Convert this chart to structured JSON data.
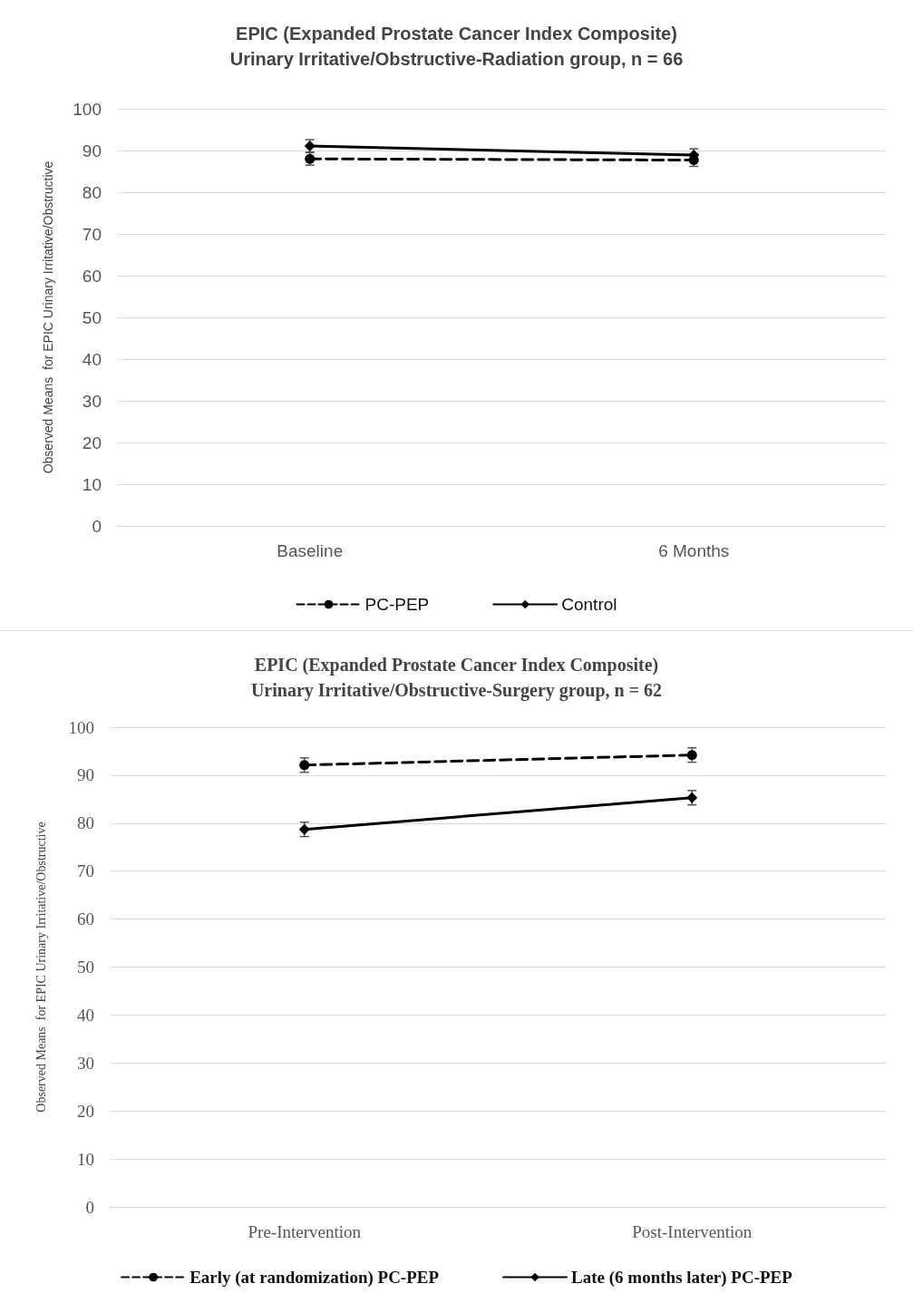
{
  "chart_data": [
    {
      "type": "line",
      "title": "EPIC (Expanded Prostate Cancer Index Composite)\nUrinary Irritative/Obstructive-Radiation group, n = 66",
      "ylabel": "Observed Means  for EPIC Urinary Irritative/Obstructive",
      "categories": [
        "Baseline",
        "6 Months"
      ],
      "ylim": [
        0,
        100
      ],
      "yticks": [
        0,
        10,
        20,
        30,
        40,
        50,
        60,
        70,
        80,
        90,
        100
      ],
      "grid": "y",
      "legend": "bottom",
      "series": [
        {
          "name": "PC-PEP",
          "color": "#000000",
          "values": [
            88.0,
            87.7
          ],
          "errors": [
            1.5,
            1.5
          ],
          "marker": "circle",
          "line_style": "dashed"
        },
        {
          "name": "Control",
          "color": "#000000",
          "values": [
            91.1,
            88.9
          ],
          "errors": [
            1.5,
            1.5
          ],
          "marker": "diamond",
          "line_style": "solid"
        }
      ]
    },
    {
      "type": "line",
      "title": "EPIC (Expanded Prostate Cancer Index Composite)\nUrinary Irritative/Obstructive-Surgery group, n = 62",
      "ylabel": "Observed Means  for EPIC Urinary Irritative/Obstructive",
      "categories": [
        "Pre-Intervention",
        "Post-Intervention"
      ],
      "ylim": [
        0,
        100
      ],
      "yticks": [
        0,
        10,
        20,
        30,
        40,
        50,
        60,
        70,
        80,
        90,
        100
      ],
      "grid": "y",
      "legend": "bottom",
      "series": [
        {
          "name": "Early (at randomization) PC-PEP",
          "color": "#000000",
          "values": [
            92.1,
            94.2
          ],
          "errors": [
            1.5,
            1.5
          ],
          "marker": "circle",
          "line_style": "dashed"
        },
        {
          "name": "Late (6 months later) PC-PEP",
          "color": "#000000",
          "values": [
            78.7,
            85.3
          ],
          "errors": [
            1.5,
            1.5
          ],
          "marker": "diamond",
          "line_style": "solid"
        }
      ]
    }
  ]
}
